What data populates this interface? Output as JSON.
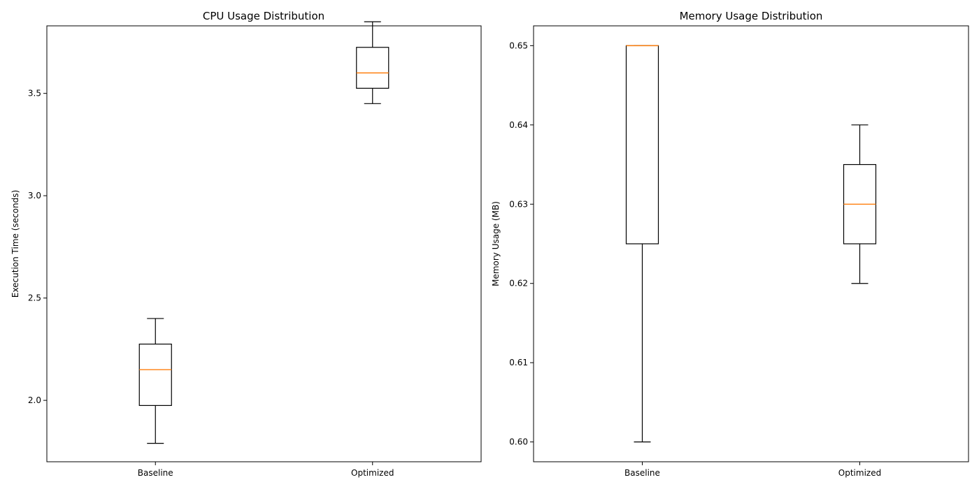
{
  "chart_data": [
    {
      "type": "box",
      "title": "CPU Usage Distribution",
      "xlabel": "",
      "ylabel": "Execution Time (seconds)",
      "ylim": [
        1.7,
        3.83
      ],
      "yticks": [
        "2.0",
        "2.5",
        "3.0",
        "3.5"
      ],
      "categories": [
        "Baseline",
        "Optimized"
      ],
      "boxes": [
        {
          "category": "Baseline",
          "min": 1.79,
          "q1": 1.975,
          "median": 2.15,
          "q3": 2.275,
          "max": 2.4
        },
        {
          "category": "Optimized",
          "min": 3.45,
          "q1": 3.525,
          "median": 3.6,
          "q3": 3.725,
          "max": 3.85
        }
      ],
      "grid": false
    },
    {
      "type": "box",
      "title": "Memory Usage Distribution",
      "xlabel": "",
      "ylabel": "Memory Usage (MB)",
      "ylim": [
        0.5975,
        0.6525
      ],
      "yticks": [
        "0.60",
        "0.61",
        "0.62",
        "0.63",
        "0.64",
        "0.65"
      ],
      "categories": [
        "Baseline",
        "Optimized"
      ],
      "boxes": [
        {
          "category": "Baseline",
          "min": 0.6,
          "q1": 0.625,
          "median": 0.65,
          "q3": 0.65,
          "max": 0.65
        },
        {
          "category": "Optimized",
          "min": 0.62,
          "q1": 0.625,
          "median": 0.63,
          "q3": 0.635,
          "max": 0.64
        }
      ],
      "grid": false
    }
  ],
  "colors": {
    "box": "#000000",
    "median": "#ff7f0e"
  }
}
